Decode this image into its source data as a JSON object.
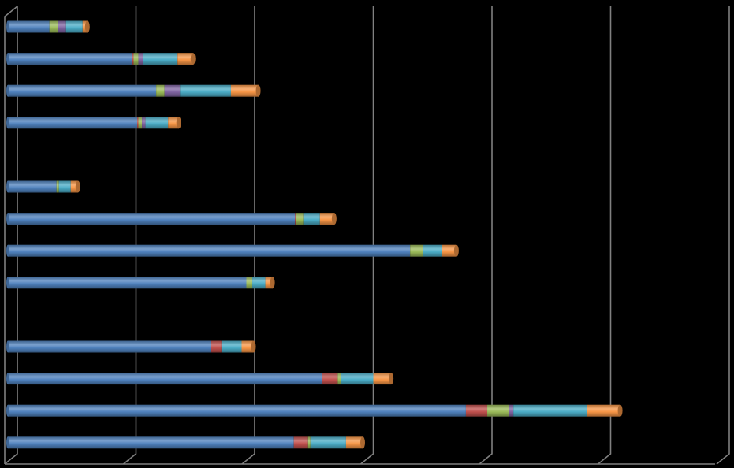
{
  "chart_data": {
    "type": "bar",
    "orientation": "horizontal",
    "stacked": true,
    "three_d": true,
    "title": "",
    "xlabel": "",
    "ylabel": "",
    "xlim": [
      0,
      6
    ],
    "grid": true,
    "legend": "none",
    "background": "#000000",
    "gridline_color": "#808080",
    "rows": [
      {
        "segments": [
          0.35,
          0.0,
          0.07,
          0.07,
          0.14,
          0.04
        ]
      },
      {
        "segments": [
          1.05,
          0.01,
          0.04,
          0.04,
          0.29,
          0.13
        ]
      },
      {
        "segments": [
          1.25,
          0.0,
          0.07,
          0.13,
          0.43,
          0.23
        ]
      },
      {
        "segments": [
          1.09,
          0.01,
          0.03,
          0.03,
          0.19,
          0.09
        ]
      },
      {
        "segments": []
      },
      {
        "segments": [
          0.41,
          0.0,
          0.02,
          0.0,
          0.1,
          0.06
        ]
      },
      {
        "segments": [
          2.42,
          0.01,
          0.06,
          0.0,
          0.14,
          0.12
        ]
      },
      {
        "segments": [
          3.39,
          0.0,
          0.11,
          0.0,
          0.16,
          0.12
        ]
      },
      {
        "segments": [
          2.01,
          0.0,
          0.05,
          0.0,
          0.11,
          0.06
        ]
      },
      {
        "segments": []
      },
      {
        "segments": [
          1.71,
          0.09,
          0.0,
          0.0,
          0.17,
          0.1
        ]
      },
      {
        "segments": [
          2.65,
          0.13,
          0.03,
          0.0,
          0.27,
          0.15
        ]
      },
      {
        "segments": [
          3.86,
          0.18,
          0.18,
          0.04,
          0.62,
          0.28
        ]
      },
      {
        "segments": [
          2.41,
          0.12,
          0.02,
          0.0,
          0.3,
          0.14
        ]
      }
    ],
    "series_colors": [
      "#4F81BD",
      "#C0504D",
      "#9BBB59",
      "#8064A2",
      "#4BACC6",
      "#F79646"
    ]
  }
}
